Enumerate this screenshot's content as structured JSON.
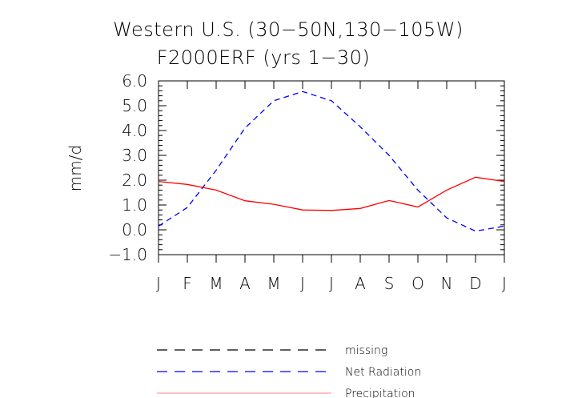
{
  "chart_data": {
    "type": "line",
    "title": "Western U.S. (30−50N,130−105W)",
    "subtitle": "F2000ERF (yrs 1−30)",
    "ylabel": "mm/d",
    "xlabel": "",
    "ylim": [
      -1.0,
      6.0
    ],
    "yticks": [
      "6.0",
      "5.0",
      "4.0",
      "3.0",
      "2.0",
      "1.0",
      "0.0",
      "−1.0"
    ],
    "ytick_values": [
      6,
      5,
      4,
      3,
      2,
      1,
      0,
      -1
    ],
    "categories": [
      "J",
      "F",
      "M",
      "A",
      "M",
      "J",
      "J",
      "A",
      "S",
      "O",
      "N",
      "D",
      "J"
    ],
    "series": [
      {
        "name": "Net Radiation",
        "color": "#0000ff",
        "dash": "dashed",
        "values": [
          0.15,
          0.9,
          2.4,
          4.1,
          5.2,
          5.57,
          5.2,
          4.15,
          3.0,
          1.6,
          0.48,
          -0.05,
          0.15
        ]
      },
      {
        "name": "Precipitation",
        "color": "#ff0000",
        "dash": "solid",
        "values": [
          1.95,
          1.83,
          1.6,
          1.17,
          1.03,
          0.8,
          0.78,
          0.86,
          1.18,
          0.92,
          1.6,
          2.12,
          1.95
        ]
      }
    ],
    "legend": {
      "placement": "bottom-center",
      "entries": [
        {
          "label": "missing",
          "color": "#000000",
          "dash": "dashed"
        },
        {
          "label": "Net Radiation",
          "color": "#0000ff",
          "dash": "dashed"
        },
        {
          "label": "Precipitation",
          "color": "#ff9999",
          "dash": "solid"
        }
      ]
    }
  }
}
